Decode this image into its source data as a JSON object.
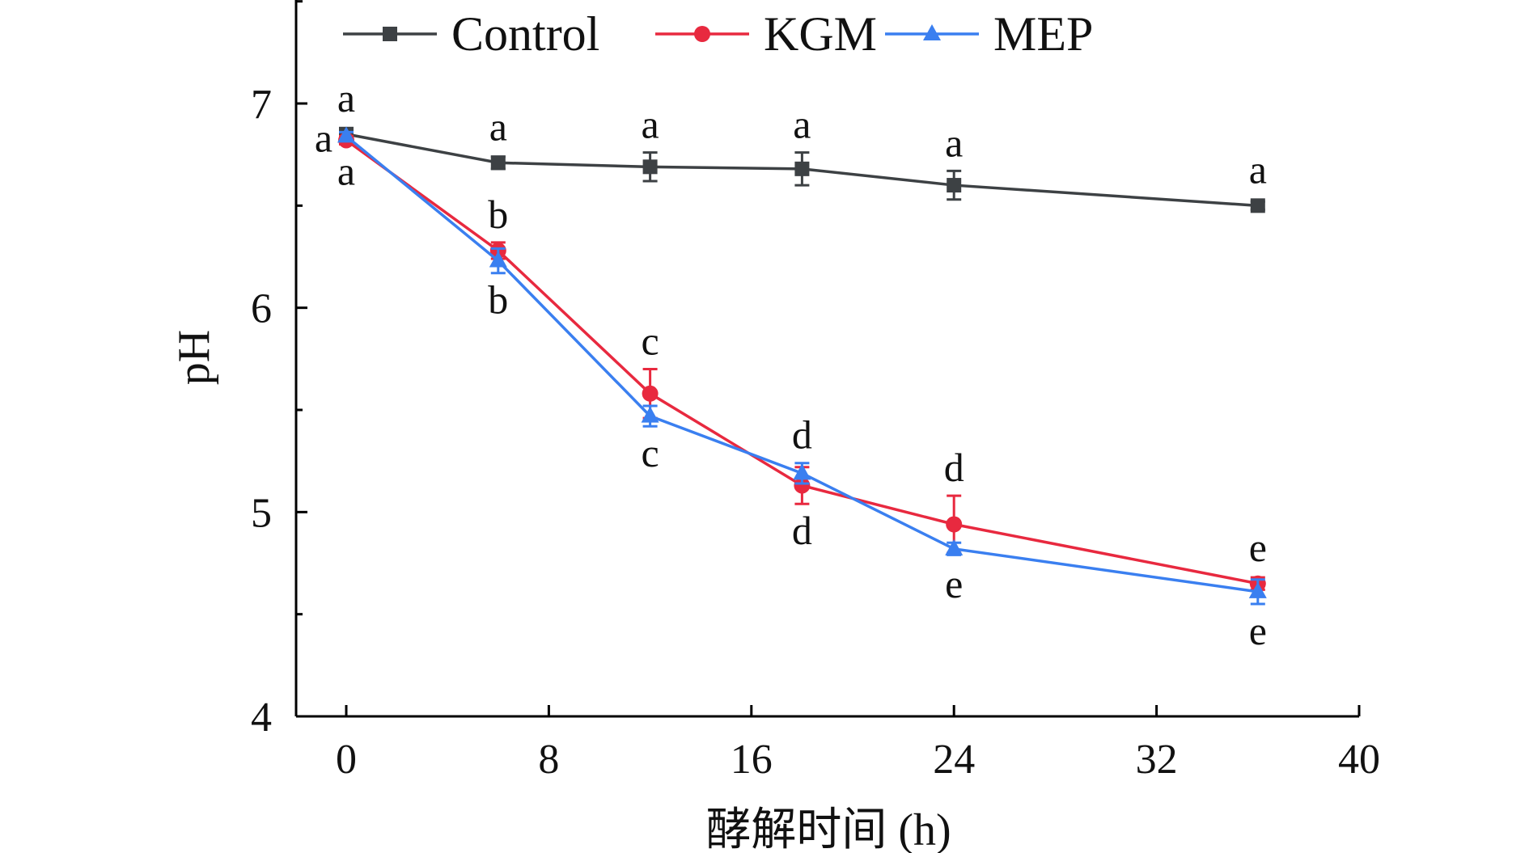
{
  "chart_data": {
    "type": "line",
    "title": "",
    "xlabel": "酵解时间 (h)",
    "ylabel": "pH",
    "xlim": [
      -2.5,
      40
    ],
    "ylim": [
      4,
      7.5
    ],
    "xticks": [
      "0",
      "8",
      "16",
      "24",
      "32",
      "40"
    ],
    "yticks": [
      "4",
      "5",
      "6",
      "7"
    ],
    "legend_position": "top",
    "x": [
      0,
      6,
      12,
      18,
      24,
      36
    ],
    "series": [
      {
        "name": "Control",
        "color": "#3d4144",
        "marker": "square",
        "values": [
          6.85,
          6.71,
          6.69,
          6.68,
          6.6,
          6.5
        ],
        "errors": [
          0.03,
          0.03,
          0.07,
          0.08,
          0.07,
          0.02
        ],
        "letters": [
          "a",
          "a",
          "a",
          "a",
          "a",
          "a"
        ],
        "letter_positions": [
          "above",
          "above",
          "above",
          "above",
          "above",
          "above"
        ]
      },
      {
        "name": "KGM",
        "color": "#e8293f",
        "marker": "circle",
        "values": [
          6.82,
          6.28,
          5.58,
          5.13,
          4.94,
          4.65
        ],
        "errors": [
          0.02,
          0.04,
          0.12,
          0.09,
          0.14,
          0.03
        ],
        "letters": [
          "a",
          "b",
          "c",
          "d",
          "d",
          "e"
        ],
        "letter_positions": [
          "left",
          "above",
          "above",
          "below",
          "above",
          "above"
        ]
      },
      {
        "name": "MEP",
        "color": "#3a7ff0",
        "marker": "triangle",
        "values": [
          6.84,
          6.23,
          5.47,
          5.19,
          4.82,
          4.61
        ],
        "errors": [
          0.02,
          0.06,
          0.05,
          0.05,
          0.03,
          0.06
        ],
        "letters": [
          "a",
          "b",
          "c",
          "d",
          "e",
          "e"
        ],
        "letter_positions": [
          "below",
          "below",
          "below",
          "above",
          "below",
          "below"
        ]
      }
    ]
  }
}
